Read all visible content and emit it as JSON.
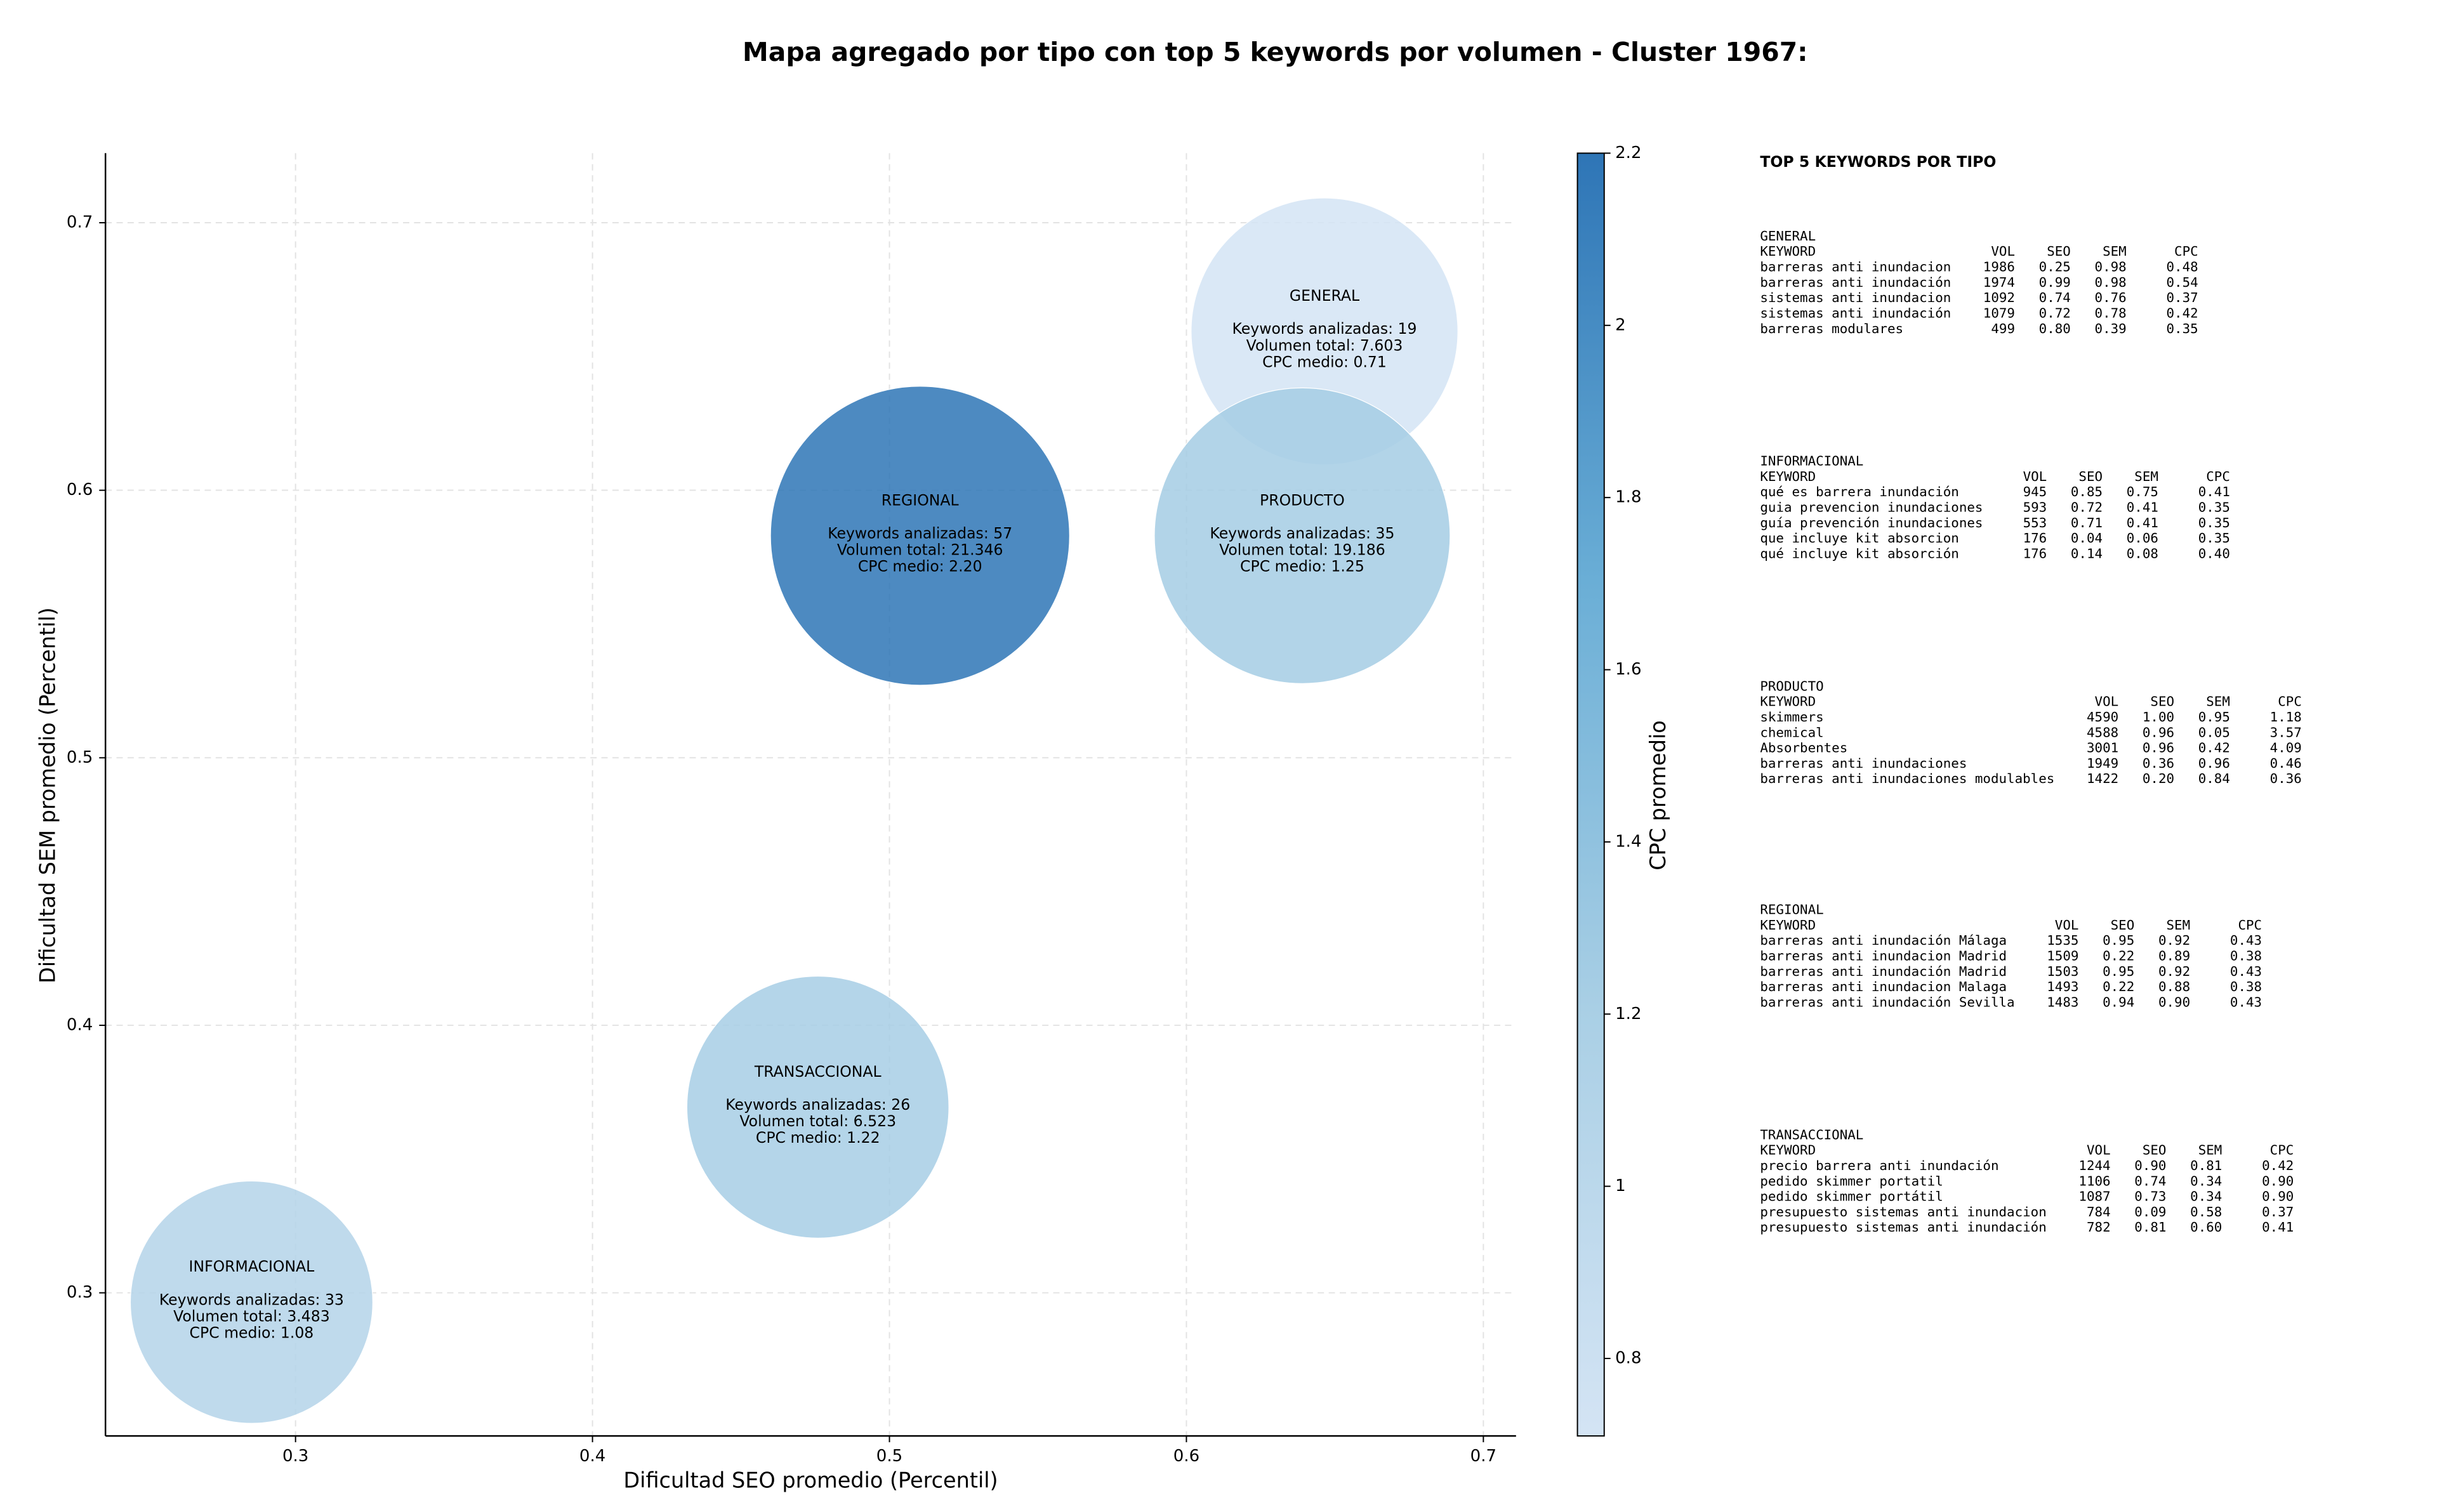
{
  "chart_data": {
    "type": "bubble",
    "title": "Mapa agregado por tipo con top 5 keywords por volumen - Cluster 1967:",
    "x_label": "Dificultad SEO promedio (Percentil)",
    "y_label": "Dificultad SEM promedio (Percentil)",
    "xlim": [
      0.236,
      0.711
    ],
    "ylim": [
      0.2465,
      0.726
    ],
    "xticks": [
      0.3,
      0.4,
      0.5,
      0.6,
      0.7
    ],
    "yticks": [
      0.3,
      0.4,
      0.5,
      0.6,
      0.7
    ],
    "grid": true,
    "colorbar": {
      "label": "CPC promedio",
      "clim": [
        0.71,
        2.2
      ],
      "ticks": [
        0.8,
        1.0,
        1.2,
        1.4,
        1.6,
        1.8,
        2.0,
        2.2
      ],
      "colormap": [
        "#d4e4f4",
        "#a9cfe5",
        "#6aaed6",
        "#2e75b6"
      ]
    },
    "points": [
      {
        "name": "GENERAL",
        "x": 0.6465,
        "y": 0.6594,
        "keywords": 19,
        "volume": 7603,
        "cpc": 0.71,
        "lines": [
          "Keywords analizadas: 19",
          "Volumen total: 7.603",
          "CPC medio: 0.71"
        ]
      },
      {
        "name": "REGIONAL",
        "x": 0.5103,
        "y": 0.583,
        "keywords": 57,
        "volume": 21346,
        "cpc": 2.2,
        "lines": [
          "Keywords analizadas: 57",
          "Volumen total: 21.346",
          "CPC medio: 2.20"
        ]
      },
      {
        "name": "PRODUCTO",
        "x": 0.639,
        "y": 0.583,
        "keywords": 35,
        "volume": 19186,
        "cpc": 1.25,
        "lines": [
          "Keywords analizadas: 35",
          "Volumen total: 19.186",
          "CPC medio: 1.25"
        ]
      },
      {
        "name": "TRANSACCIONAL",
        "x": 0.4759,
        "y": 0.3694,
        "keywords": 26,
        "volume": 6523,
        "cpc": 1.22,
        "lines": [
          "Keywords analizadas: 26",
          "Volumen total: 6.523",
          "CPC medio: 1.22"
        ]
      },
      {
        "name": "INFORMACIONAL",
        "x": 0.2852,
        "y": 0.2965,
        "keywords": 33,
        "volume": 3483,
        "cpc": 1.08,
        "lines": [
          "Keywords analizadas: 33",
          "Volumen total: 3.483",
          "CPC medio: 1.08"
        ]
      }
    ]
  },
  "side_panel": {
    "title": "TOP 5 KEYWORDS POR TIPO",
    "groups": [
      {
        "name": "GENERAL",
        "columns": [
          "KEYWORD",
          "VOL",
          "SEO",
          "SEM",
          "CPC"
        ],
        "rows": [
          [
            "barreras anti inundacion",
            "1986",
            "0.25",
            "0.98",
            "0.48"
          ],
          [
            "barreras anti inundación",
            "1974",
            "0.99",
            "0.98",
            "0.54"
          ],
          [
            "sistemas anti inundacion",
            "1092",
            "0.74",
            "0.76",
            "0.37"
          ],
          [
            "sistemas anti inundación",
            "1079",
            "0.72",
            "0.78",
            "0.42"
          ],
          [
            "barreras modulares",
            "499",
            "0.80",
            "0.39",
            "0.35"
          ]
        ]
      },
      {
        "name": "INFORMACIONAL",
        "columns": [
          "KEYWORD",
          "VOL",
          "SEO",
          "SEM",
          "CPC"
        ],
        "rows": [
          [
            "qué es barrera inundación",
            "945",
            "0.85",
            "0.75",
            "0.41"
          ],
          [
            "guia prevencion inundaciones",
            "593",
            "0.72",
            "0.41",
            "0.35"
          ],
          [
            "guía prevención inundaciones",
            "553",
            "0.71",
            "0.41",
            "0.35"
          ],
          [
            "que incluye kit absorcion",
            "176",
            "0.04",
            "0.06",
            "0.35"
          ],
          [
            "qué incluye kit absorción",
            "176",
            "0.14",
            "0.08",
            "0.40"
          ]
        ]
      },
      {
        "name": "PRODUCTO",
        "columns": [
          "KEYWORD",
          "VOL",
          "SEO",
          "SEM",
          "CPC"
        ],
        "rows": [
          [
            "skimmers",
            "4590",
            "1.00",
            "0.95",
            "1.18"
          ],
          [
            "chemical",
            "4588",
            "0.96",
            "0.05",
            "3.57"
          ],
          [
            "Absorbentes",
            "3001",
            "0.96",
            "0.42",
            "4.09"
          ],
          [
            "barreras anti inundaciones",
            "1949",
            "0.36",
            "0.96",
            "0.46"
          ],
          [
            "barreras anti inundaciones modulables",
            "1422",
            "0.20",
            "0.84",
            "0.36"
          ]
        ]
      },
      {
        "name": "REGIONAL",
        "columns": [
          "KEYWORD",
          "VOL",
          "SEO",
          "SEM",
          "CPC"
        ],
        "rows": [
          [
            "barreras anti inundación Málaga",
            "1535",
            "0.95",
            "0.92",
            "0.43"
          ],
          [
            "barreras anti inundacion Madrid",
            "1509",
            "0.22",
            "0.89",
            "0.38"
          ],
          [
            "barreras anti inundación Madrid",
            "1503",
            "0.95",
            "0.92",
            "0.43"
          ],
          [
            "barreras anti inundacion Malaga",
            "1493",
            "0.22",
            "0.88",
            "0.38"
          ],
          [
            "barreras anti inundación Sevilla",
            "1483",
            "0.94",
            "0.90",
            "0.43"
          ]
        ]
      },
      {
        "name": "TRANSACCIONAL",
        "columns": [
          "KEYWORD",
          "VOL",
          "SEO",
          "SEM",
          "CPC"
        ],
        "rows": [
          [
            "precio barrera anti inundación",
            "1244",
            "0.90",
            "0.81",
            "0.42"
          ],
          [
            "pedido skimmer portatil",
            "1106",
            "0.74",
            "0.34",
            "0.90"
          ],
          [
            "pedido skimmer portátil",
            "1087",
            "0.73",
            "0.34",
            "0.90"
          ],
          [
            "presupuesto sistemas anti inundacion",
            "784",
            "0.09",
            "0.58",
            "0.37"
          ],
          [
            "presupuesto sistemas anti inundación",
            "782",
            "0.81",
            "0.60",
            "0.41"
          ]
        ]
      }
    ]
  }
}
